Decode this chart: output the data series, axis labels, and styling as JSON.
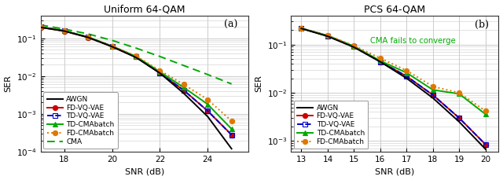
{
  "title1": "Uniform 64-QAM",
  "title2": "PCS 64-QAM",
  "label_a": "(a)",
  "label_b": "(b)",
  "xlabel": "SNR (dB)",
  "ylabel": "SER",
  "panel1": {
    "xlim": [
      17.0,
      25.7
    ],
    "ylim": [
      0.0001,
      0.4
    ],
    "xticks": [
      18,
      20,
      22,
      24
    ],
    "snr": [
      17,
      18,
      19,
      20,
      21,
      22,
      23,
      24,
      25
    ],
    "AWGN": [
      0.195,
      0.155,
      0.105,
      0.06,
      0.031,
      0.012,
      0.0035,
      0.00085,
      0.00012
    ],
    "FD_VQ_VAE": [
      0.195,
      0.155,
      0.105,
      0.06,
      0.032,
      0.012,
      0.0042,
      0.0012,
      0.00028
    ],
    "TD_VQ_VAE": [
      0.2,
      0.158,
      0.107,
      0.061,
      0.032,
      0.012,
      0.0042,
      0.0012,
      0.00028
    ],
    "TD_CMAbatch": [
      0.2,
      0.158,
      0.107,
      0.062,
      0.033,
      0.013,
      0.005,
      0.0018,
      0.0004
    ],
    "FD_CMAbatch": [
      0.2,
      0.158,
      0.107,
      0.062,
      0.034,
      0.014,
      0.006,
      0.0024,
      0.00065
    ],
    "CMA": [
      0.225,
      0.175,
      0.13,
      0.088,
      0.055,
      0.033,
      0.019,
      0.011,
      0.0062
    ]
  },
  "panel2": {
    "xlim": [
      12.6,
      20.5
    ],
    "ylim": [
      0.0006,
      0.4
    ],
    "xticks": [
      13,
      14,
      15,
      16,
      17,
      18,
      19,
      20
    ],
    "snr": [
      13,
      14,
      15,
      16,
      17,
      18,
      19,
      20
    ],
    "AWGN": [
      0.215,
      0.148,
      0.088,
      0.044,
      0.02,
      0.0078,
      0.0025,
      0.00068
    ],
    "FD_VQ_VAE": [
      0.215,
      0.152,
      0.09,
      0.044,
      0.022,
      0.009,
      0.003,
      0.00085
    ],
    "TD_VQ_VAE": [
      0.217,
      0.152,
      0.09,
      0.044,
      0.022,
      0.009,
      0.003,
      0.00085
    ],
    "TD_CMAbatch": [
      0.217,
      0.153,
      0.092,
      0.046,
      0.026,
      0.0115,
      0.0095,
      0.0036
    ],
    "FD_CMAbatch": [
      0.217,
      0.155,
      0.095,
      0.052,
      0.029,
      0.0135,
      0.01,
      0.0042
    ]
  },
  "colors": {
    "AWGN": "#000000",
    "FD_VQ_VAE": "#cc0000",
    "TD_VQ_VAE": "#0000cc",
    "TD_CMAbatch": "#00aa00",
    "FD_CMAbatch": "#e07800",
    "CMA": "#00aa00"
  },
  "legend_labels": {
    "AWGN": "AWGN",
    "FD_VQ_VAE": "FD-VQ-VAE",
    "TD_VQ_VAE": "TD-VQ-VAE",
    "TD_CMAbatch": "TD-CMAbatch",
    "FD_CMAbatch": "FD-CMAbatch",
    "CMA": "CMA"
  },
  "cma_fails_text": "CMA fails to converge",
  "cma_fails_color": "#00aa00",
  "bg_color": "#ffffff",
  "grid_color": "#cccccc"
}
